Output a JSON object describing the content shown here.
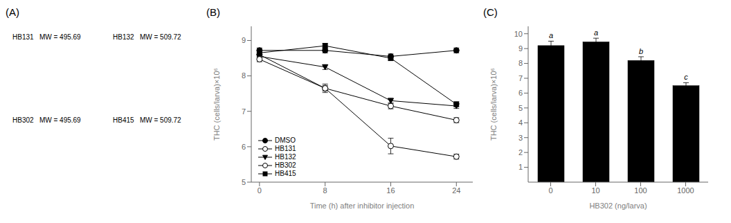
{
  "chart_data": [
    {
      "type": "text",
      "title": "(A)",
      "annotations": [
        "HB131   MW = 495.69",
        "HB132   MW = 509.72",
        "HB302   MW = 495.69",
        "HB415   MW = 509.72"
      ]
    },
    {
      "type": "line",
      "title": "(B)",
      "xlabel": "Time (h) after inhibitor injection",
      "ylabel": "THC (cells/larva)×10⁶",
      "x": [
        0,
        8,
        16,
        24
      ],
      "series": [
        {
          "name": "DMSO",
          "color": "black",
          "marker": "circle",
          "values": [
            8.72,
            8.72,
            8.55,
            8.72
          ],
          "yerr": [
            0.07,
            0.07,
            0.07,
            0.07
          ]
        },
        {
          "name": "HB131",
          "color": "black",
          "marker": "open_circle",
          "values": [
            8.6,
            7.65,
            7.15,
            6.75
          ],
          "yerr": [
            0.07,
            0.08,
            0.08,
            0.07
          ]
        },
        {
          "name": "HB132",
          "color": "black",
          "marker": "triangle_down",
          "values": [
            8.55,
            8.25,
            7.3,
            7.15
          ],
          "yerr": [
            0.07,
            0.07,
            0.07,
            0.07
          ]
        },
        {
          "name": "HB302",
          "color": "black",
          "marker": "open_circle",
          "values": [
            8.47,
            7.65,
            6.02,
            5.72
          ],
          "yerr": [
            0.07,
            0.12,
            0.22,
            0.07
          ]
        },
        {
          "name": "HB415",
          "color": "black",
          "marker": "square",
          "values": [
            8.65,
            8.85,
            8.5,
            7.2
          ],
          "yerr": [
            0.07,
            0.07,
            0.07,
            0.07
          ]
        }
      ],
      "xlim": [
        -1,
        26
      ],
      "xticks": [
        0,
        8,
        16,
        24
      ],
      "ylim": [
        5,
        9.4
      ],
      "yticks": [
        5,
        6,
        7,
        8,
        9
      ],
      "grid": false,
      "legend": "lower left"
    },
    {
      "type": "bar",
      "title": "(C)",
      "xlabel": "HB302 (ng/larva)",
      "ylabel": "THC (cells/larva)×10⁶",
      "categories": [
        "0",
        "10",
        "100",
        "1000"
      ],
      "values": [
        9.2,
        9.45,
        8.2,
        6.5
      ],
      "yerr": [
        0.3,
        0.25,
        0.25,
        0.2
      ],
      "color": "black",
      "annotations": [
        "a",
        "a",
        "b",
        "c"
      ],
      "ylim": [
        0,
        10.5
      ],
      "yticks": [
        1,
        2,
        3,
        4,
        5,
        6,
        7,
        8,
        9,
        10
      ],
      "grid": false
    }
  ]
}
